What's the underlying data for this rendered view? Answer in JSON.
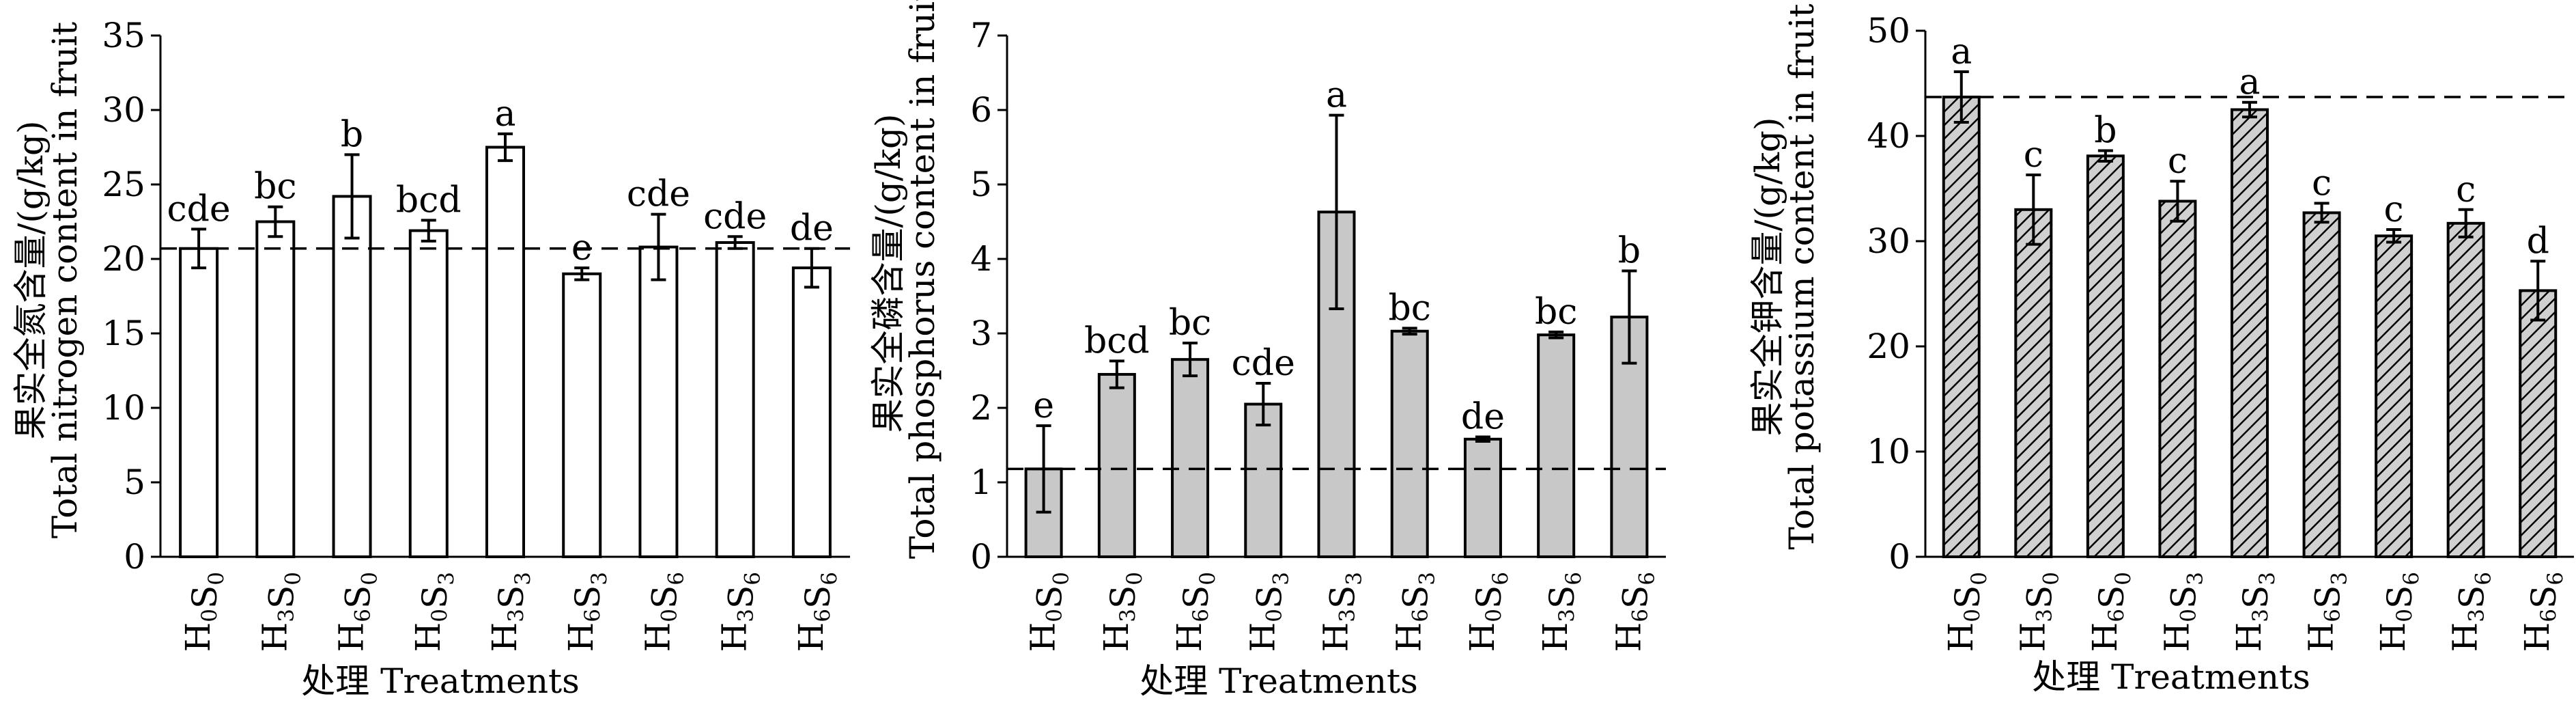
{
  "chart_data": [
    {
      "type": "bar",
      "categories": [
        "H0S0",
        "H3S0",
        "H6S0",
        "H0S3",
        "H3S3",
        "H6S3",
        "H0S6",
        "H3S6",
        "H6S6"
      ],
      "values": [
        20.7,
        22.5,
        24.2,
        21.9,
        27.5,
        19.0,
        20.8,
        21.1,
        19.4
      ],
      "errors": [
        1.3,
        1.0,
        2.8,
        0.7,
        0.9,
        0.4,
        2.2,
        0.4,
        1.3
      ],
      "significance": [
        "cde",
        "bc",
        "b",
        "bcd",
        "a",
        "e",
        "cde",
        "cde",
        "de"
      ],
      "reference_line": 20.7,
      "ylabel_cn": "果实全氮含量/(g/kg)",
      "ylabel_en": "Total nitrogen content in fruit",
      "xlabel": "处理 Treatments",
      "ylim": [
        0,
        35
      ],
      "yticks": [
        0,
        5,
        10,
        15,
        20,
        25,
        30,
        35
      ],
      "bar_fill": "#ffffff",
      "bar_pattern": "none"
    },
    {
      "type": "bar",
      "categories": [
        "H0S0",
        "H3S0",
        "H6S0",
        "H0S3",
        "H3S3",
        "H6S3",
        "H0S6",
        "H3S6",
        "H6S6"
      ],
      "values": [
        1.18,
        2.45,
        2.65,
        2.05,
        4.63,
        3.03,
        1.58,
        2.98,
        3.22
      ],
      "errors": [
        0.58,
        0.18,
        0.22,
        0.28,
        1.3,
        0.04,
        0.03,
        0.04,
        0.62
      ],
      "significance": [
        "e",
        "bcd",
        "bc",
        "cde",
        "a",
        "bc",
        "de",
        "bc",
        "b"
      ],
      "reference_line": 1.18,
      "ylabel_cn": "果实全磷含量/(g/kg)",
      "ylabel_en": "Total phosphorus content in fruit",
      "xlabel": "处理 Treatments",
      "ylim": [
        0,
        7
      ],
      "yticks": [
        0,
        1,
        2,
        3,
        4,
        5,
        6,
        7
      ],
      "bar_fill": "#c8c8c8",
      "bar_pattern": "none"
    },
    {
      "type": "bar",
      "categories": [
        "H0S0",
        "H3S0",
        "H6S0",
        "H0S3",
        "H3S3",
        "H6S3",
        "H0S6",
        "H3S6",
        "H6S6"
      ],
      "values": [
        43.7,
        33.0,
        38.1,
        33.8,
        42.5,
        32.7,
        30.5,
        31.7,
        25.3
      ],
      "errors": [
        2.4,
        3.3,
        0.5,
        1.9,
        0.7,
        0.9,
        0.6,
        1.3,
        2.8
      ],
      "significance": [
        "a",
        "c",
        "b",
        "c",
        "a",
        "c",
        "c",
        "c",
        "d"
      ],
      "reference_line": 43.7,
      "ylabel_cn": "果实全钾含量/(g/kg)",
      "ylabel_en": "Total potassium content in fruit",
      "xlabel": "处理 Treatments",
      "ylim": [
        0,
        50
      ],
      "yticks": [
        0,
        10,
        20,
        30,
        40,
        50
      ],
      "bar_fill": "#d0d0d0",
      "bar_pattern": "hatch"
    }
  ]
}
